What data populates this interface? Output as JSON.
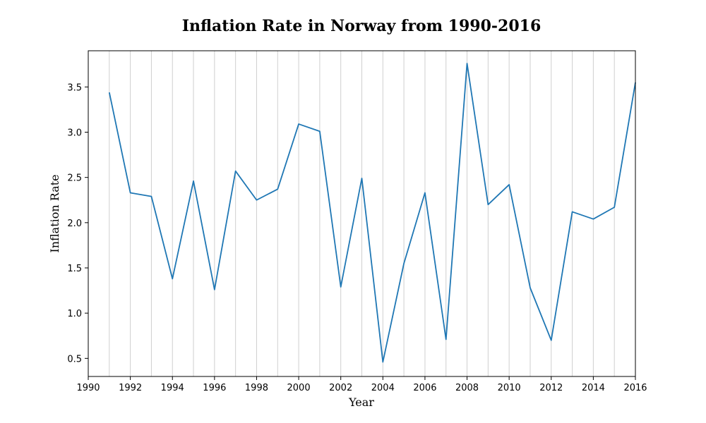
{
  "chart_data": {
    "type": "line",
    "title": "Inflation Rate in Norway from 1990-2016",
    "xlabel": "Year",
    "ylabel": "Inflation Rate",
    "xlim": [
      1990,
      2016
    ],
    "ylim": [
      0.3,
      3.9
    ],
    "x_ticks": [
      1990,
      1992,
      1994,
      1996,
      1998,
      2000,
      2002,
      2004,
      2006,
      2008,
      2010,
      2012,
      2014,
      2016
    ],
    "y_ticks": [
      0.5,
      1.0,
      1.5,
      2.0,
      2.5,
      3.0,
      3.5
    ],
    "grid": "vertical lines at every year",
    "line_color": "#1f77b4",
    "series": [
      {
        "x": [
          1991,
          1992,
          1993,
          1994,
          1995,
          1996,
          1997,
          1998,
          1999,
          2000,
          2001,
          2002,
          2003,
          2004,
          2005,
          2006,
          2007,
          2008,
          2009,
          2010,
          2011,
          2012,
          2013,
          2014,
          2015,
          2016
        ],
        "values": [
          3.44,
          2.33,
          2.29,
          1.38,
          2.46,
          1.26,
          2.57,
          2.25,
          2.37,
          3.09,
          3.01,
          1.29,
          2.49,
          0.46,
          1.55,
          2.33,
          0.71,
          3.76,
          2.2,
          2.42,
          1.28,
          0.7,
          2.12,
          2.04,
          2.17,
          3.55
        ]
      }
    ]
  }
}
